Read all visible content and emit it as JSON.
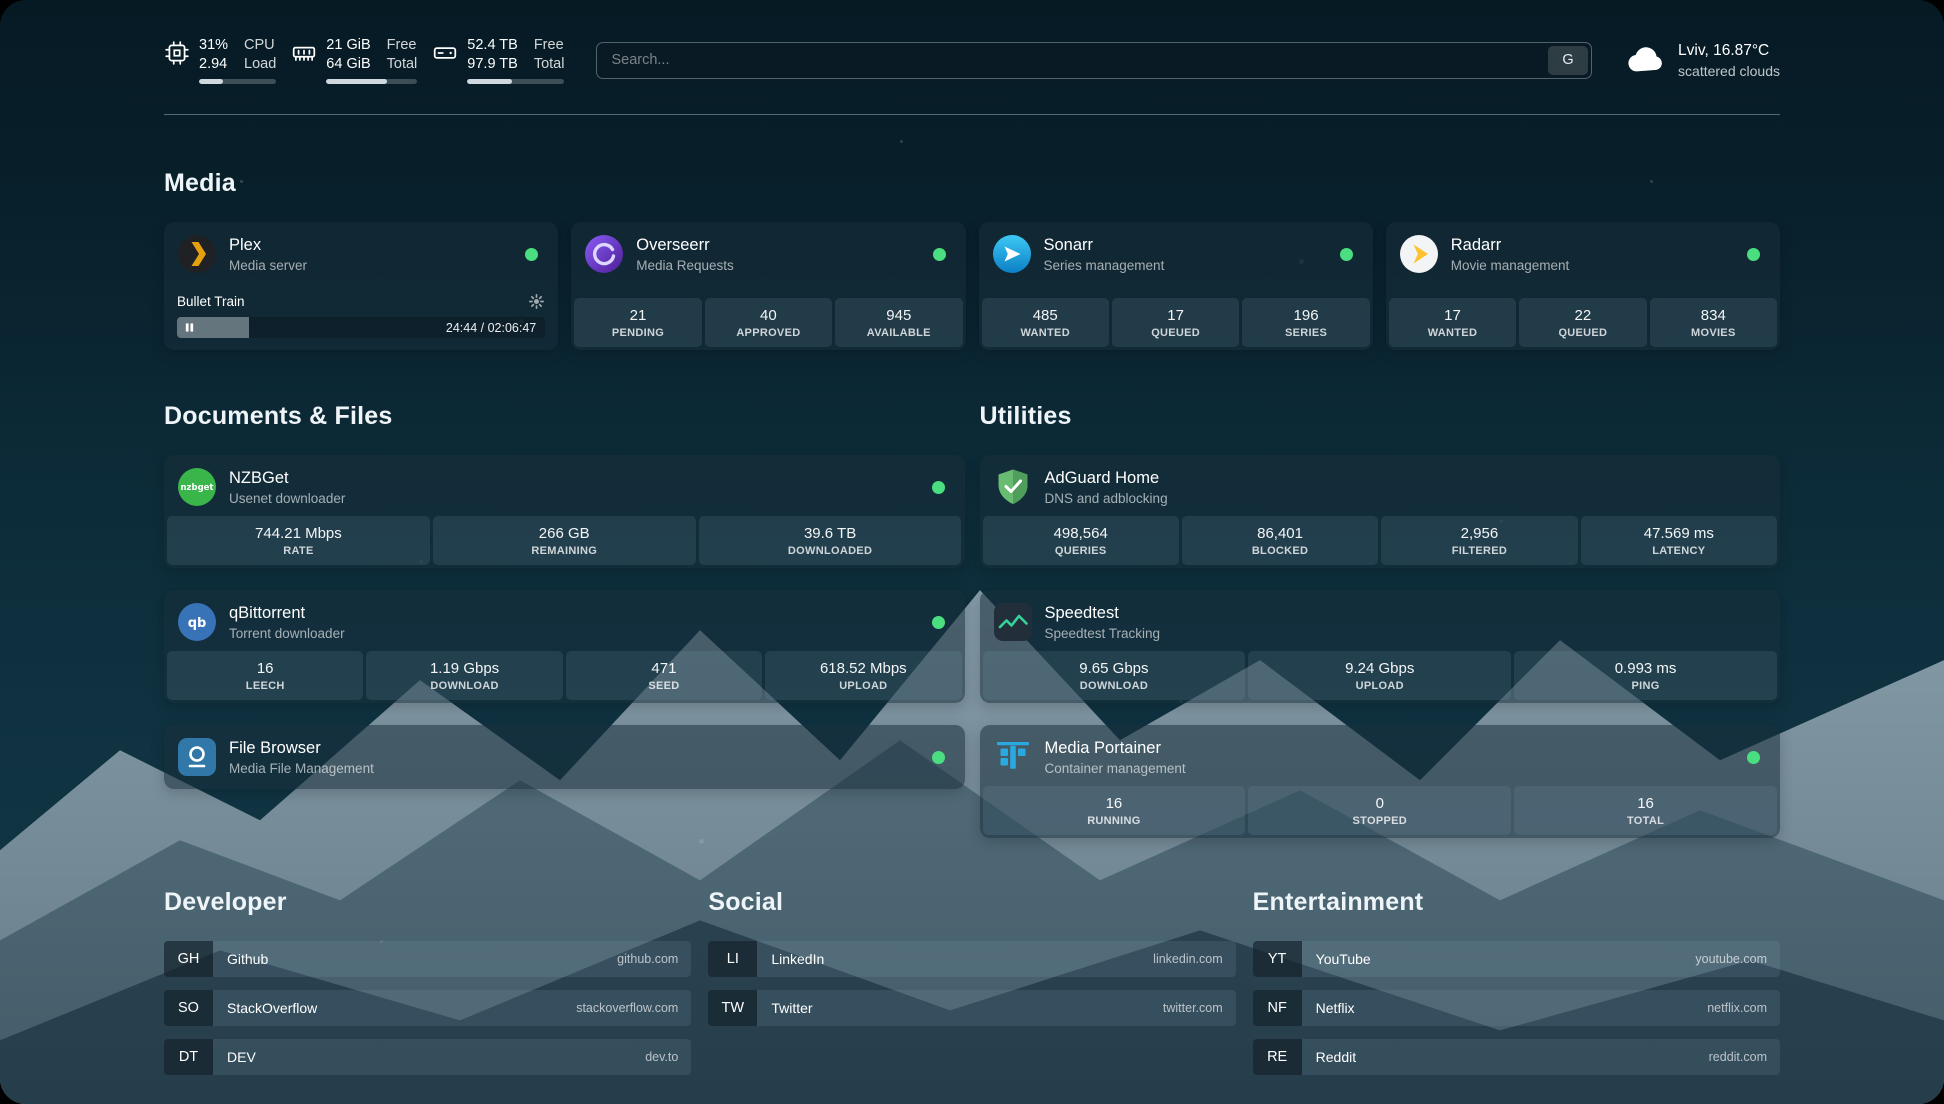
{
  "colors": {
    "status_online": "#4ade80"
  },
  "topbar": {
    "resources": [
      {
        "icon": "cpu-icon",
        "col1_top": "31%",
        "col1_bottom": "2.94",
        "col2_top": "CPU",
        "col2_bottom": "Load",
        "progress": 31
      },
      {
        "icon": "memory-icon",
        "col1_top": "21 GiB",
        "col1_bottom": "64 GiB",
        "col2_top": "Free",
        "col2_bottom": "Total",
        "progress": 67
      },
      {
        "icon": "disk-icon",
        "col1_top": "52.4 TB",
        "col1_bottom": "97.9 TB",
        "col2_top": "Free",
        "col2_bottom": "Total",
        "progress": 46
      }
    ],
    "search": {
      "placeholder": "Search...",
      "provider": "G"
    },
    "weather": {
      "icon": "cloud-icon",
      "location": "Lviv, 16.87°C",
      "condition": "scattered clouds"
    }
  },
  "service_groups": [
    {
      "title": "Media",
      "services": [
        {
          "name": "Plex",
          "description": "Media server",
          "icon": "plex-icon",
          "online": true,
          "player": {
            "title": "Bullet Train",
            "time": "24:44 / 02:06:47",
            "progress_pct": 19.5
          }
        },
        {
          "name": "Overseerr",
          "description": "Media Requests",
          "icon": "overseerr-icon",
          "online": true,
          "stats": [
            {
              "value": "21",
              "label": "PENDING"
            },
            {
              "value": "40",
              "label": "APPROVED"
            },
            {
              "value": "945",
              "label": "AVAILABLE"
            }
          ]
        },
        {
          "name": "Sonarr",
          "description": "Series management",
          "icon": "sonarr-icon",
          "online": true,
          "stats": [
            {
              "value": "485",
              "label": "WANTED"
            },
            {
              "value": "17",
              "label": "QUEUED"
            },
            {
              "value": "196",
              "label": "SERIES"
            }
          ]
        },
        {
          "name": "Radarr",
          "description": "Movie management",
          "icon": "radarr-icon",
          "online": true,
          "stats": [
            {
              "value": "17",
              "label": "WANTED"
            },
            {
              "value": "22",
              "label": "QUEUED"
            },
            {
              "value": "834",
              "label": "MOVIES"
            }
          ]
        }
      ]
    },
    {
      "title": "Documents & Files",
      "services": [
        {
          "name": "NZBGet",
          "description": "Usenet downloader",
          "icon": "nzbget-icon",
          "online": true,
          "stats": [
            {
              "value": "744.21 Mbps",
              "label": "RATE"
            },
            {
              "value": "266 GB",
              "label": "REMAINING"
            },
            {
              "value": "39.6 TB",
              "label": "DOWNLOADED"
            }
          ]
        },
        {
          "name": "qBittorrent",
          "description": "Torrent downloader",
          "icon": "qbittorrent-icon",
          "online": true,
          "stats": [
            {
              "value": "16",
              "label": "LEECH"
            },
            {
              "value": "1.19 Gbps",
              "label": "DOWNLOAD"
            },
            {
              "value": "471",
              "label": "SEED"
            },
            {
              "value": "618.52 Mbps",
              "label": "UPLOAD"
            }
          ]
        },
        {
          "name": "File Browser",
          "description": "Media File Management",
          "icon": "filebrowser-icon",
          "online": true,
          "stats": []
        }
      ]
    },
    {
      "title": "Utilities",
      "services": [
        {
          "name": "AdGuard Home",
          "description": "DNS and adblocking",
          "icon": "adguard-icon",
          "online": false,
          "stats": [
            {
              "value": "498,564",
              "label": "QUERIES"
            },
            {
              "value": "86,401",
              "label": "BLOCKED"
            },
            {
              "value": "2,956",
              "label": "FILTERED"
            },
            {
              "value": "47.569 ms",
              "label": "LATENCY"
            }
          ]
        },
        {
          "name": "Speedtest",
          "description": "Speedtest Tracking",
          "icon": "speedtest-icon",
          "online": false,
          "stats": [
            {
              "value": "9.65 Gbps",
              "label": "DOWNLOAD"
            },
            {
              "value": "9.24 Gbps",
              "label": "UPLOAD"
            },
            {
              "value": "0.993 ms",
              "label": "PING"
            }
          ]
        },
        {
          "name": "Media Portainer",
          "description": "Container management",
          "icon": "portainer-icon",
          "online": true,
          "stats": [
            {
              "value": "16",
              "label": "RUNNING"
            },
            {
              "value": "0",
              "label": "STOPPED"
            },
            {
              "value": "16",
              "label": "TOTAL"
            }
          ]
        }
      ]
    }
  ],
  "bookmark_groups": [
    {
      "title": "Developer",
      "items": [
        {
          "abbr": "GH",
          "name": "Github",
          "domain": "github.com"
        },
        {
          "abbr": "SO",
          "name": "StackOverflow",
          "domain": "stackoverflow.com"
        },
        {
          "abbr": "DT",
          "name": "DEV",
          "domain": "dev.to"
        }
      ]
    },
    {
      "title": "Social",
      "items": [
        {
          "abbr": "LI",
          "name": "LinkedIn",
          "domain": "linkedin.com"
        },
        {
          "abbr": "TW",
          "name": "Twitter",
          "domain": "twitter.com"
        }
      ]
    },
    {
      "title": "Entertainment",
      "items": [
        {
          "abbr": "YT",
          "name": "YouTube",
          "domain": "youtube.com"
        },
        {
          "abbr": "NF",
          "name": "Netflix",
          "domain": "netflix.com"
        },
        {
          "abbr": "RE",
          "name": "Reddit",
          "domain": "reddit.com"
        }
      ]
    }
  ]
}
